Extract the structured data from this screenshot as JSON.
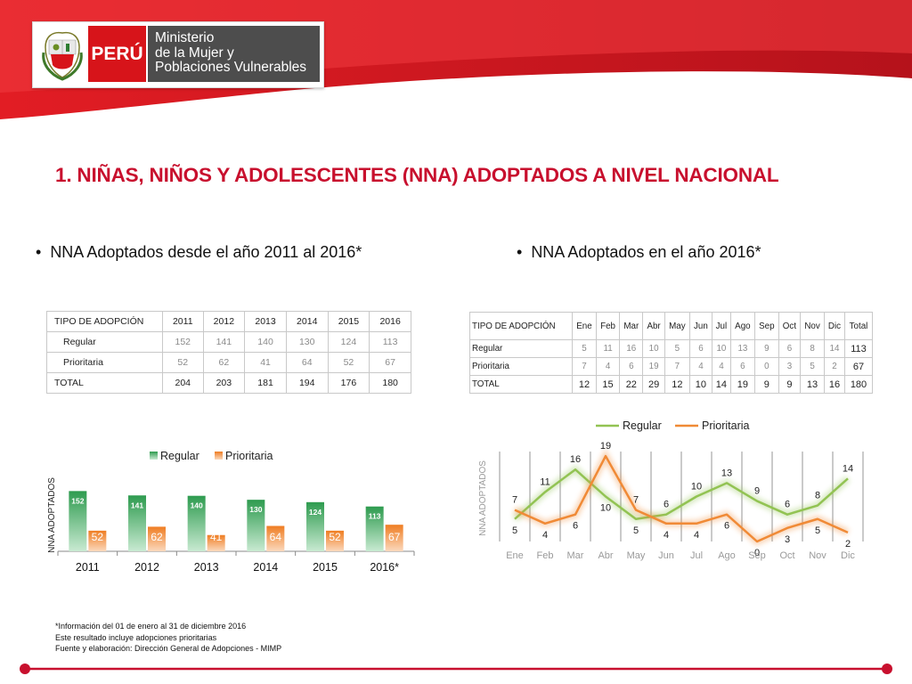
{
  "header": {
    "country": "PERÚ",
    "ministry_lines": [
      "Ministerio",
      "de la Mujer y",
      "Poblaciones Vulnerables"
    ],
    "crest_label": "REPÚBLICA DEL PERÚ"
  },
  "title": "1. NIÑAS, NIÑOS Y ADOLESCENTES (NNA) ADOPTADOS A NIVEL NACIONAL",
  "left_section": {
    "subtitle": "NNA Adoptados desde el año 2011 al 2016*",
    "table": {
      "headers": [
        "TIPO DE ADOPCIÓN",
        "2011",
        "2012",
        "2013",
        "2014",
        "2015",
        "2016"
      ],
      "rows": [
        {
          "label": "Regular",
          "values": [
            "152",
            "141",
            "140",
            "130",
            "124",
            "113"
          ]
        },
        {
          "label": "Prioritaria",
          "values": [
            "52",
            "62",
            "41",
            "64",
            "52",
            "67"
          ]
        },
        {
          "label": "TOTAL",
          "values": [
            "204",
            "203",
            "181",
            "194",
            "176",
            "180"
          ]
        }
      ]
    }
  },
  "right_section": {
    "subtitle": "NNA Adoptados en el año 2016*",
    "table": {
      "headers": [
        "TIPO DE ADOPCIÓN",
        "Ene",
        "Feb",
        "Mar",
        "Abr",
        "May",
        "Jun",
        "Jul",
        "Ago",
        "Sep",
        "Oct",
        "Nov",
        "Dic",
        "Total"
      ],
      "rows": [
        {
          "label": "Regular",
          "values": [
            "5",
            "11",
            "16",
            "10",
            "5",
            "6",
            "10",
            "13",
            "9",
            "6",
            "8",
            "14",
            "113"
          ]
        },
        {
          "label": "Prioritaria",
          "values": [
            "7",
            "4",
            "6",
            "19",
            "7",
            "4",
            "4",
            "6",
            "0",
            "3",
            "5",
            "2",
            "67"
          ]
        },
        {
          "label": "TOTAL",
          "values": [
            "12",
            "15",
            "22",
            "29",
            "12",
            "10",
            "14",
            "19",
            "9",
            "9",
            "13",
            "16",
            "180"
          ]
        }
      ]
    }
  },
  "footnote": [
    "*Información del 01 de enero al 31 de diciembre 2016",
    "Este resultado incluye adopciones prioritarias",
    "Fuente y elaboración: Dirección General de Adopciones - MIMP"
  ],
  "colors": {
    "brand_red": "#c8102e",
    "regular_bar": "#2e9b4f",
    "prioritaria_bar": "#ef7d22",
    "regular_line": "#92c353",
    "prioritaria_line": "#f08a36",
    "ministry_gray": "#4d4d4d"
  },
  "chart_data": [
    {
      "type": "bar",
      "categories": [
        "2011",
        "2012",
        "2013",
        "2014",
        "2015",
        "2016*"
      ],
      "series": [
        {
          "name": "Regular",
          "values": [
            152,
            141,
            140,
            130,
            124,
            113
          ]
        },
        {
          "name": "Prioritaria",
          "values": [
            52,
            62,
            41,
            64,
            52,
            67
          ]
        }
      ],
      "ylabel": "NNA ADOPTADOS",
      "ylim": [
        0,
        200
      ],
      "legend": "top",
      "grid": false
    },
    {
      "type": "line",
      "categories": [
        "Ene",
        "Feb",
        "Mar",
        "Abr",
        "May",
        "Jun",
        "Jul",
        "Ago",
        "Sep",
        "Oct",
        "Nov",
        "Dic"
      ],
      "series": [
        {
          "name": "Regular",
          "values": [
            5,
            11,
            16,
            10,
            5,
            6,
            10,
            13,
            9,
            6,
            8,
            14
          ]
        },
        {
          "name": "Prioritaria",
          "values": [
            7,
            4,
            6,
            19,
            7,
            4,
            4,
            6,
            0,
            3,
            5,
            2
          ]
        }
      ],
      "ylabel": "NNA ADOPTADOS",
      "ylim": [
        0,
        20
      ],
      "legend": "top",
      "grid": true
    }
  ]
}
